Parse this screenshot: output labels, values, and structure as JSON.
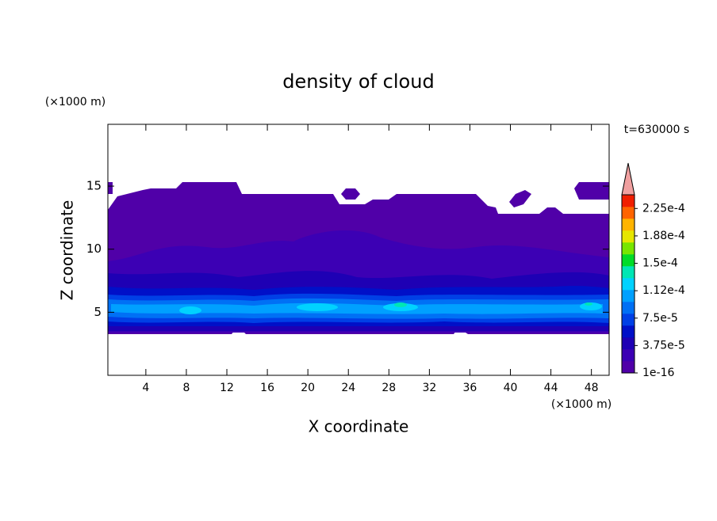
{
  "chart_data": {
    "type": "contour",
    "title": "density of cloud",
    "xlabel": "X coordinate",
    "ylabel": "Z coordinate",
    "x_unit": "(×1000 m)",
    "y_unit": "(×1000 m)",
    "time_label": "t=630000 s",
    "xlim": [
      0.25,
      49.75
    ],
    "ylim": [
      0,
      19.9
    ],
    "xticks": [
      4,
      8,
      12,
      16,
      20,
      24,
      28,
      32,
      36,
      40,
      44,
      48
    ],
    "yticks": [
      5,
      10,
      15
    ],
    "colorbar": {
      "clim": [
        1e-16,
        0.00024375
      ],
      "ticks": [
        {
          "value": 1e-16,
          "label": "1e-16"
        },
        {
          "value": 3.75e-05,
          "label": "3.75e-5"
        },
        {
          "value": 7.5e-05,
          "label": "7.5e-5"
        },
        {
          "value": 0.0001125,
          "label": "1.12e-4"
        },
        {
          "value": 0.00015,
          "label": "1.5e-4"
        },
        {
          "value": 0.0001875,
          "label": "1.88e-4"
        },
        {
          "value": 0.000225,
          "label": "2.25e-4"
        }
      ],
      "colors": [
        "#5000a8",
        "#3c00b4",
        "#1e00b4",
        "#0010c8",
        "#0040e6",
        "#0070f5",
        "#00a0ff",
        "#00d2ff",
        "#00e6b4",
        "#00dc28",
        "#78e600",
        "#e6e600",
        "#ffb400",
        "#ff6400",
        "#f01e00"
      ],
      "overflow_color": "#f0a0a0"
    }
  }
}
